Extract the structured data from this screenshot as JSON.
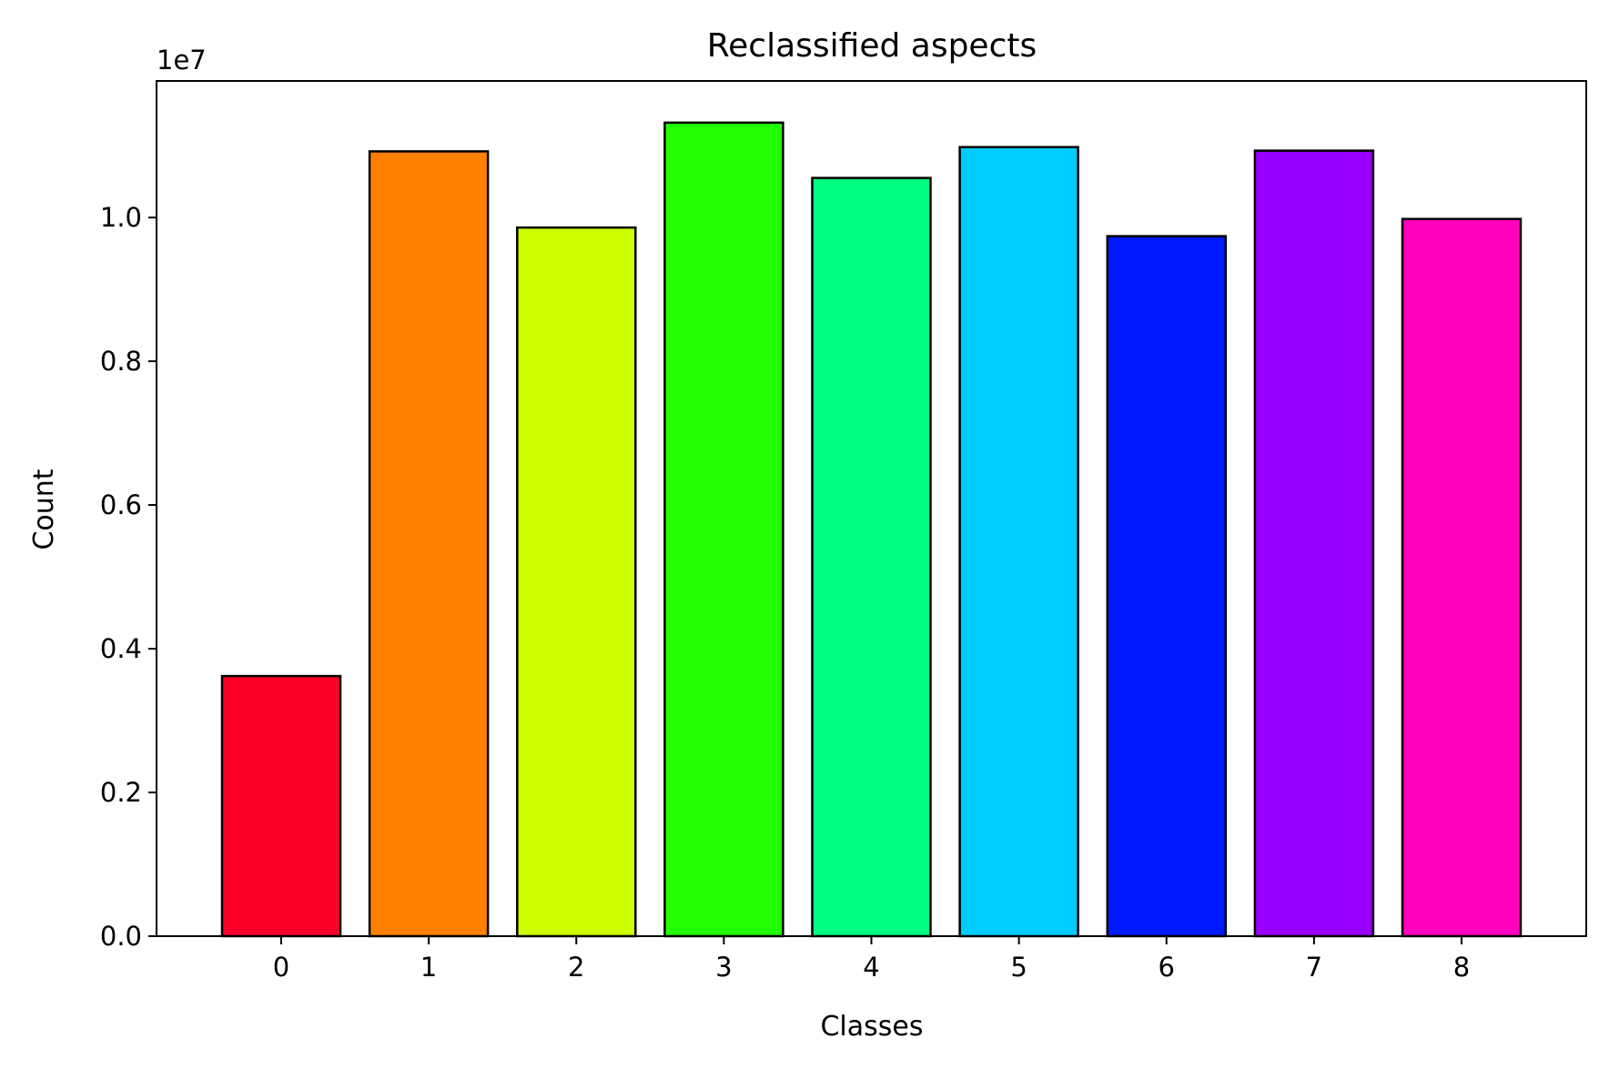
{
  "chart_data": {
    "type": "bar",
    "title": "Reclassified aspects",
    "xlabel": "Classes",
    "ylabel": "Count",
    "y_offset_label": "1e7",
    "categories": [
      "0",
      "1",
      "2",
      "3",
      "4",
      "5",
      "6",
      "7",
      "8"
    ],
    "values": [
      3620000,
      10920000,
      9860000,
      11320000,
      10550000,
      10980000,
      9740000,
      10930000,
      9980000
    ],
    "colors": [
      "#ff0029",
      "#ff8000",
      "#ccff00",
      "#22ff00",
      "#00ff80",
      "#00ccff",
      "#001aff",
      "#9900ff",
      "#ff00bf"
    ],
    "edge_color": "#000000",
    "ylim": [
      0,
      11900000
    ],
    "y_ticks": [
      {
        "value": 0,
        "label": "0.0"
      },
      {
        "value": 2000000,
        "label": "0.2"
      },
      {
        "value": 4000000,
        "label": "0.4"
      },
      {
        "value": 6000000,
        "label": "0.6"
      },
      {
        "value": 8000000,
        "label": "0.8"
      },
      {
        "value": 10000000,
        "label": "1.0"
      }
    ],
    "grid": false,
    "legend": "none"
  }
}
